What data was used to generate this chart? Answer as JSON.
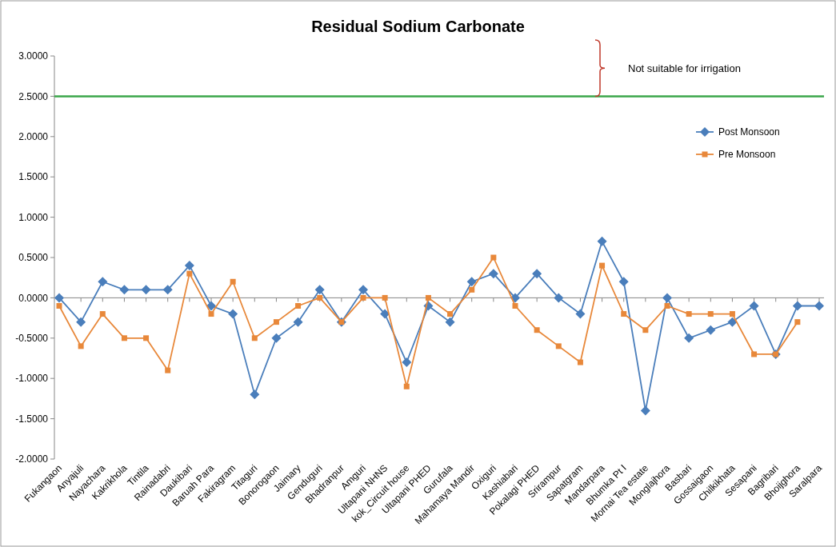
{
  "chart_data": {
    "type": "line",
    "title": "Residual Sodium Carbonate",
    "categories": [
      "Fukangaon",
      "Anyajuli",
      "Nayachara",
      "Kakrikhola",
      "Tintila",
      "Rainadabri",
      "Daukibari",
      "Baruah Para",
      "Fakiragram",
      "Titaguri",
      "Bonorogaon",
      "Jaimary",
      "Genduguri",
      "Bhadranpur",
      "Amguri",
      "Ultapani NHNS",
      "kok_Circuit house",
      "Ultapani PHED",
      "Gurufala",
      "Mahamaya Mandir",
      "Oxiguri",
      "Kashiabari",
      "Pokalagi PHED",
      "Srirampur",
      "Sapatgram",
      "Mandarpara",
      "Bhumka Pt I",
      "Mornai Tea estate",
      "Monglajhora",
      "Basbari",
      "Gossaigaon",
      "Chilkikhata",
      "Sesapani",
      "Bagribari",
      "Bhoijghora",
      "Saralpara"
    ],
    "series": [
      {
        "name": "Post Monsoon",
        "color": "#4a7ebb",
        "marker": "diamond",
        "values": [
          0,
          -0.3,
          0.2,
          0.1,
          0.1,
          0.1,
          0.4,
          -0.1,
          -0.2,
          -1.2,
          -0.5,
          -0.3,
          0.1,
          -0.3,
          0.1,
          -0.2,
          -0.8,
          -0.1,
          -0.3,
          0.2,
          0.3,
          0,
          0.3,
          0,
          -0.2,
          0.7,
          0.2,
          -1.4,
          0,
          -0.5,
          -0.4,
          -0.3,
          -0.1,
          -0.7,
          -0.1,
          -0.1
        ]
      },
      {
        "name": "Pre Monsoon",
        "color": "#e8883a",
        "marker": "square",
        "values": [
          -0.1,
          -0.6,
          -0.2,
          -0.5,
          -0.5,
          -0.9,
          0.3,
          -0.2,
          0.2,
          -0.5,
          -0.3,
          -0.1,
          0,
          -0.3,
          0,
          0,
          -1.1,
          0,
          -0.2,
          0.1,
          0.5,
          -0.1,
          -0.4,
          -0.6,
          -0.8,
          0.4,
          -0.2,
          -0.4,
          -0.1,
          -0.2,
          -0.2,
          -0.2,
          -0.7,
          -0.7,
          -0.3,
          null
        ]
      }
    ],
    "ylim": [
      -2,
      3
    ],
    "yticks": [
      {
        "value": -2,
        "label": "-2.0000"
      },
      {
        "value": -1.5,
        "label": "-1.5000"
      },
      {
        "value": -1,
        "label": "-1.0000"
      },
      {
        "value": -0.5,
        "label": "-0.5000"
      },
      {
        "value": 0,
        "label": "0.0000"
      },
      {
        "value": 0.5,
        "label": "0.5000"
      },
      {
        "value": 1,
        "label": "1.0000"
      },
      {
        "value": 1.5,
        "label": "1.5000"
      },
      {
        "value": 2,
        "label": "2.0000"
      },
      {
        "value": 2.5,
        "label": "2.5000"
      },
      {
        "value": 3,
        "label": "3.0000"
      }
    ],
    "ref_lines": [
      {
        "axis": "y",
        "value": 2.5,
        "color": "#3aa64a",
        "label": "Not suitable for irrigation"
      }
    ],
    "legend": "right",
    "grid": false
  }
}
